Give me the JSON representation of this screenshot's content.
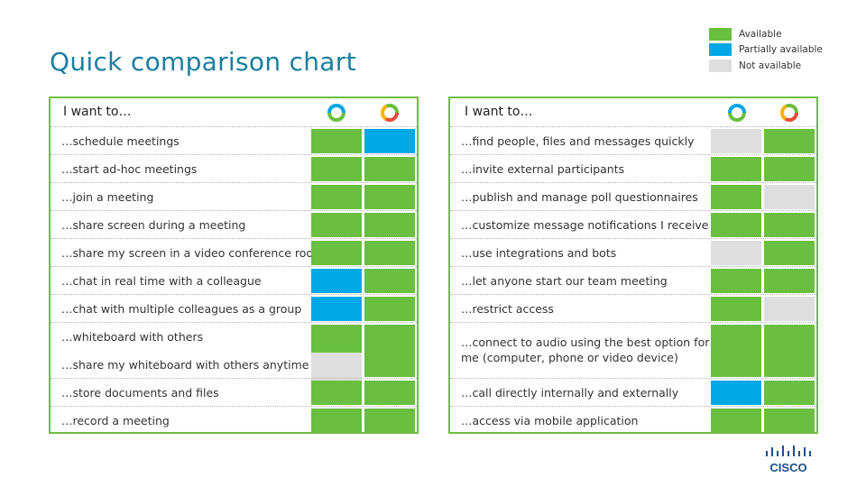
{
  "title": "Quick comparison chart",
  "colors": {
    "available": "#6bbf40",
    "partial": "#00a8e6",
    "not_available": "#dedede"
  },
  "legend": [
    {
      "label": "Available",
      "status": "available"
    },
    {
      "label": "Partially available",
      "status": "partial"
    },
    {
      "label": "Not available",
      "status": "not_available"
    }
  ],
  "left": {
    "header": "I want to…",
    "rows": [
      {
        "label": "…schedule meetings",
        "a": "available",
        "b": "partial"
      },
      {
        "label": "…start ad-hoc meetings",
        "a": "available",
        "b": "available"
      },
      {
        "label": "…join a meeting",
        "a": "available",
        "b": "available"
      },
      {
        "label": "…share screen during a meeting",
        "a": "available",
        "b": "available"
      },
      {
        "label": "…share my screen in a video conference room",
        "a": "available",
        "b": "available"
      },
      {
        "label": "…chat in real time with a colleague",
        "a": "partial",
        "b": "available"
      },
      {
        "label": "…chat with multiple colleagues as a group",
        "a": "partial",
        "b": "available"
      },
      {
        "label": "…whiteboard with others",
        "label2": "…share my whiteboard with others anytime",
        "a": "available",
        "a2": "not_available",
        "b": "available"
      },
      {
        "label": "…store documents and files",
        "a": "available",
        "b": "available"
      },
      {
        "label": "…record a meeting",
        "a": "available",
        "b": "available"
      }
    ]
  },
  "right": {
    "header": "I want to…",
    "rows": [
      {
        "label": "…find people, files and messages quickly",
        "a": "not_available",
        "b": "available"
      },
      {
        "label": "…invite external participants",
        "a": "available",
        "b": "available"
      },
      {
        "label": "…publish and manage poll questionnaires",
        "a": "available",
        "b": "not_available"
      },
      {
        "label": "…customize message notifications I receive",
        "a": "available",
        "b": "available"
      },
      {
        "label": "…use integrations and bots",
        "a": "not_available",
        "b": "available"
      },
      {
        "label": "…let anyone start our team meeting",
        "a": "available",
        "b": "available"
      },
      {
        "label": "…restrict access",
        "a": "available",
        "b": "not_available"
      },
      {
        "label": "…connect to audio using the best option for me (computer, phone or video device)",
        "a": "available",
        "b": "available"
      },
      {
        "label": "…call directly internally and externally",
        "a": "partial",
        "b": "available"
      },
      {
        "label": "…access via mobile application",
        "a": "available",
        "b": "available"
      }
    ]
  },
  "logo": "cisco"
}
